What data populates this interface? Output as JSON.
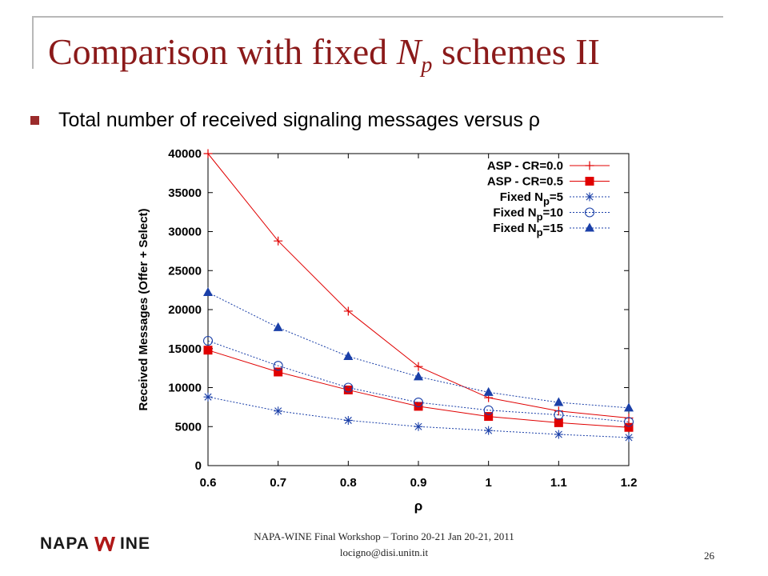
{
  "slide": {
    "title_main": "Comparison with fixed ",
    "title_np": "N",
    "title_np_sub": "p",
    "title_rest": " schemes II",
    "bullet": "Total number of received signaling messages versus ρ"
  },
  "footer": {
    "logo_left": "NAPA",
    "logo_right": "INE",
    "line1": "NAPA-WINE Final Workshop – Torino 20-21 Jan 20-21, 2011",
    "line2": "locigno@disi.unitn.it",
    "page": "26"
  },
  "chart_data": {
    "type": "line",
    "xlabel": "ρ",
    "ylabel": "Received Messages (Offer + Select)",
    "xlim": [
      0.6,
      1.2
    ],
    "ylim": [
      0,
      40000
    ],
    "xticks": [
      "0.6",
      "0.7",
      "0.8",
      "0.9",
      "1",
      "1.1",
      "1.2"
    ],
    "yticks": [
      "0",
      "5000",
      "10000",
      "15000",
      "20000",
      "25000",
      "30000",
      "35000",
      "40000"
    ],
    "legend_position": "top-right",
    "x": [
      0.6,
      0.7,
      0.8,
      0.9,
      1.0,
      1.1,
      1.2
    ],
    "series": [
      {
        "name": "ASP - CR=0.0",
        "values": [
          40000,
          28800,
          19800,
          12700,
          8700,
          7000,
          6100
        ],
        "color": "#e00000",
        "marker": "plus",
        "line": "solid"
      },
      {
        "name": "ASP - CR=0.5",
        "values": [
          14800,
          12000,
          9700,
          7600,
          6300,
          5500,
          4900
        ],
        "color": "#e00000",
        "marker": "filled-square",
        "line": "solid"
      },
      {
        "name": "Fixed N_p=5",
        "values": [
          8800,
          7000,
          5800,
          5000,
          4500,
          4000,
          3600
        ],
        "color": "#1a3fa8",
        "marker": "asterisk",
        "line": "dotted"
      },
      {
        "name": "Fixed N_p=10",
        "values": [
          16000,
          12800,
          10000,
          8100,
          7100,
          6500,
          5600
        ],
        "color": "#1a3fa8",
        "marker": "open-circle",
        "line": "dotted"
      },
      {
        "name": "Fixed N_p=15",
        "values": [
          22200,
          17700,
          14000,
          11400,
          9400,
          8100,
          7400
        ],
        "color": "#1a3fa8",
        "marker": "filled-triangle",
        "line": "dotted"
      }
    ]
  }
}
